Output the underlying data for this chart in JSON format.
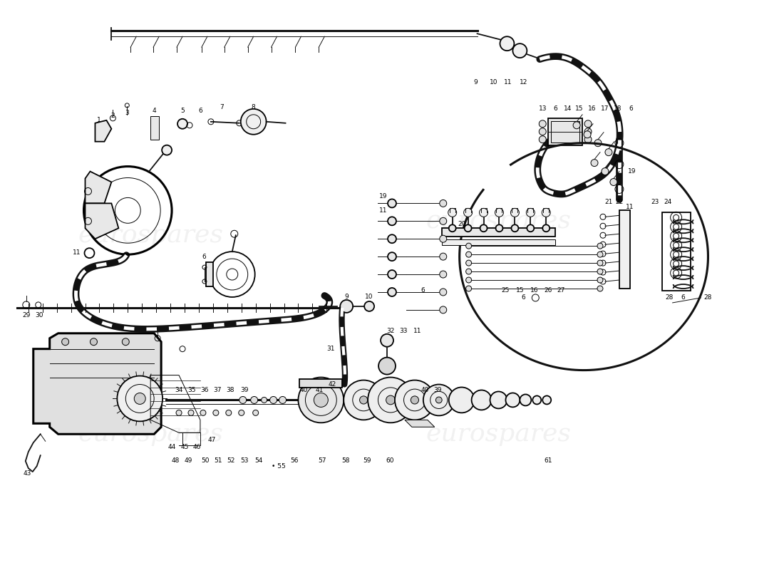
{
  "background_color": "#ffffff",
  "line_color": "#111111",
  "fig_width": 11.0,
  "fig_height": 8.0,
  "dpi": 100
}
